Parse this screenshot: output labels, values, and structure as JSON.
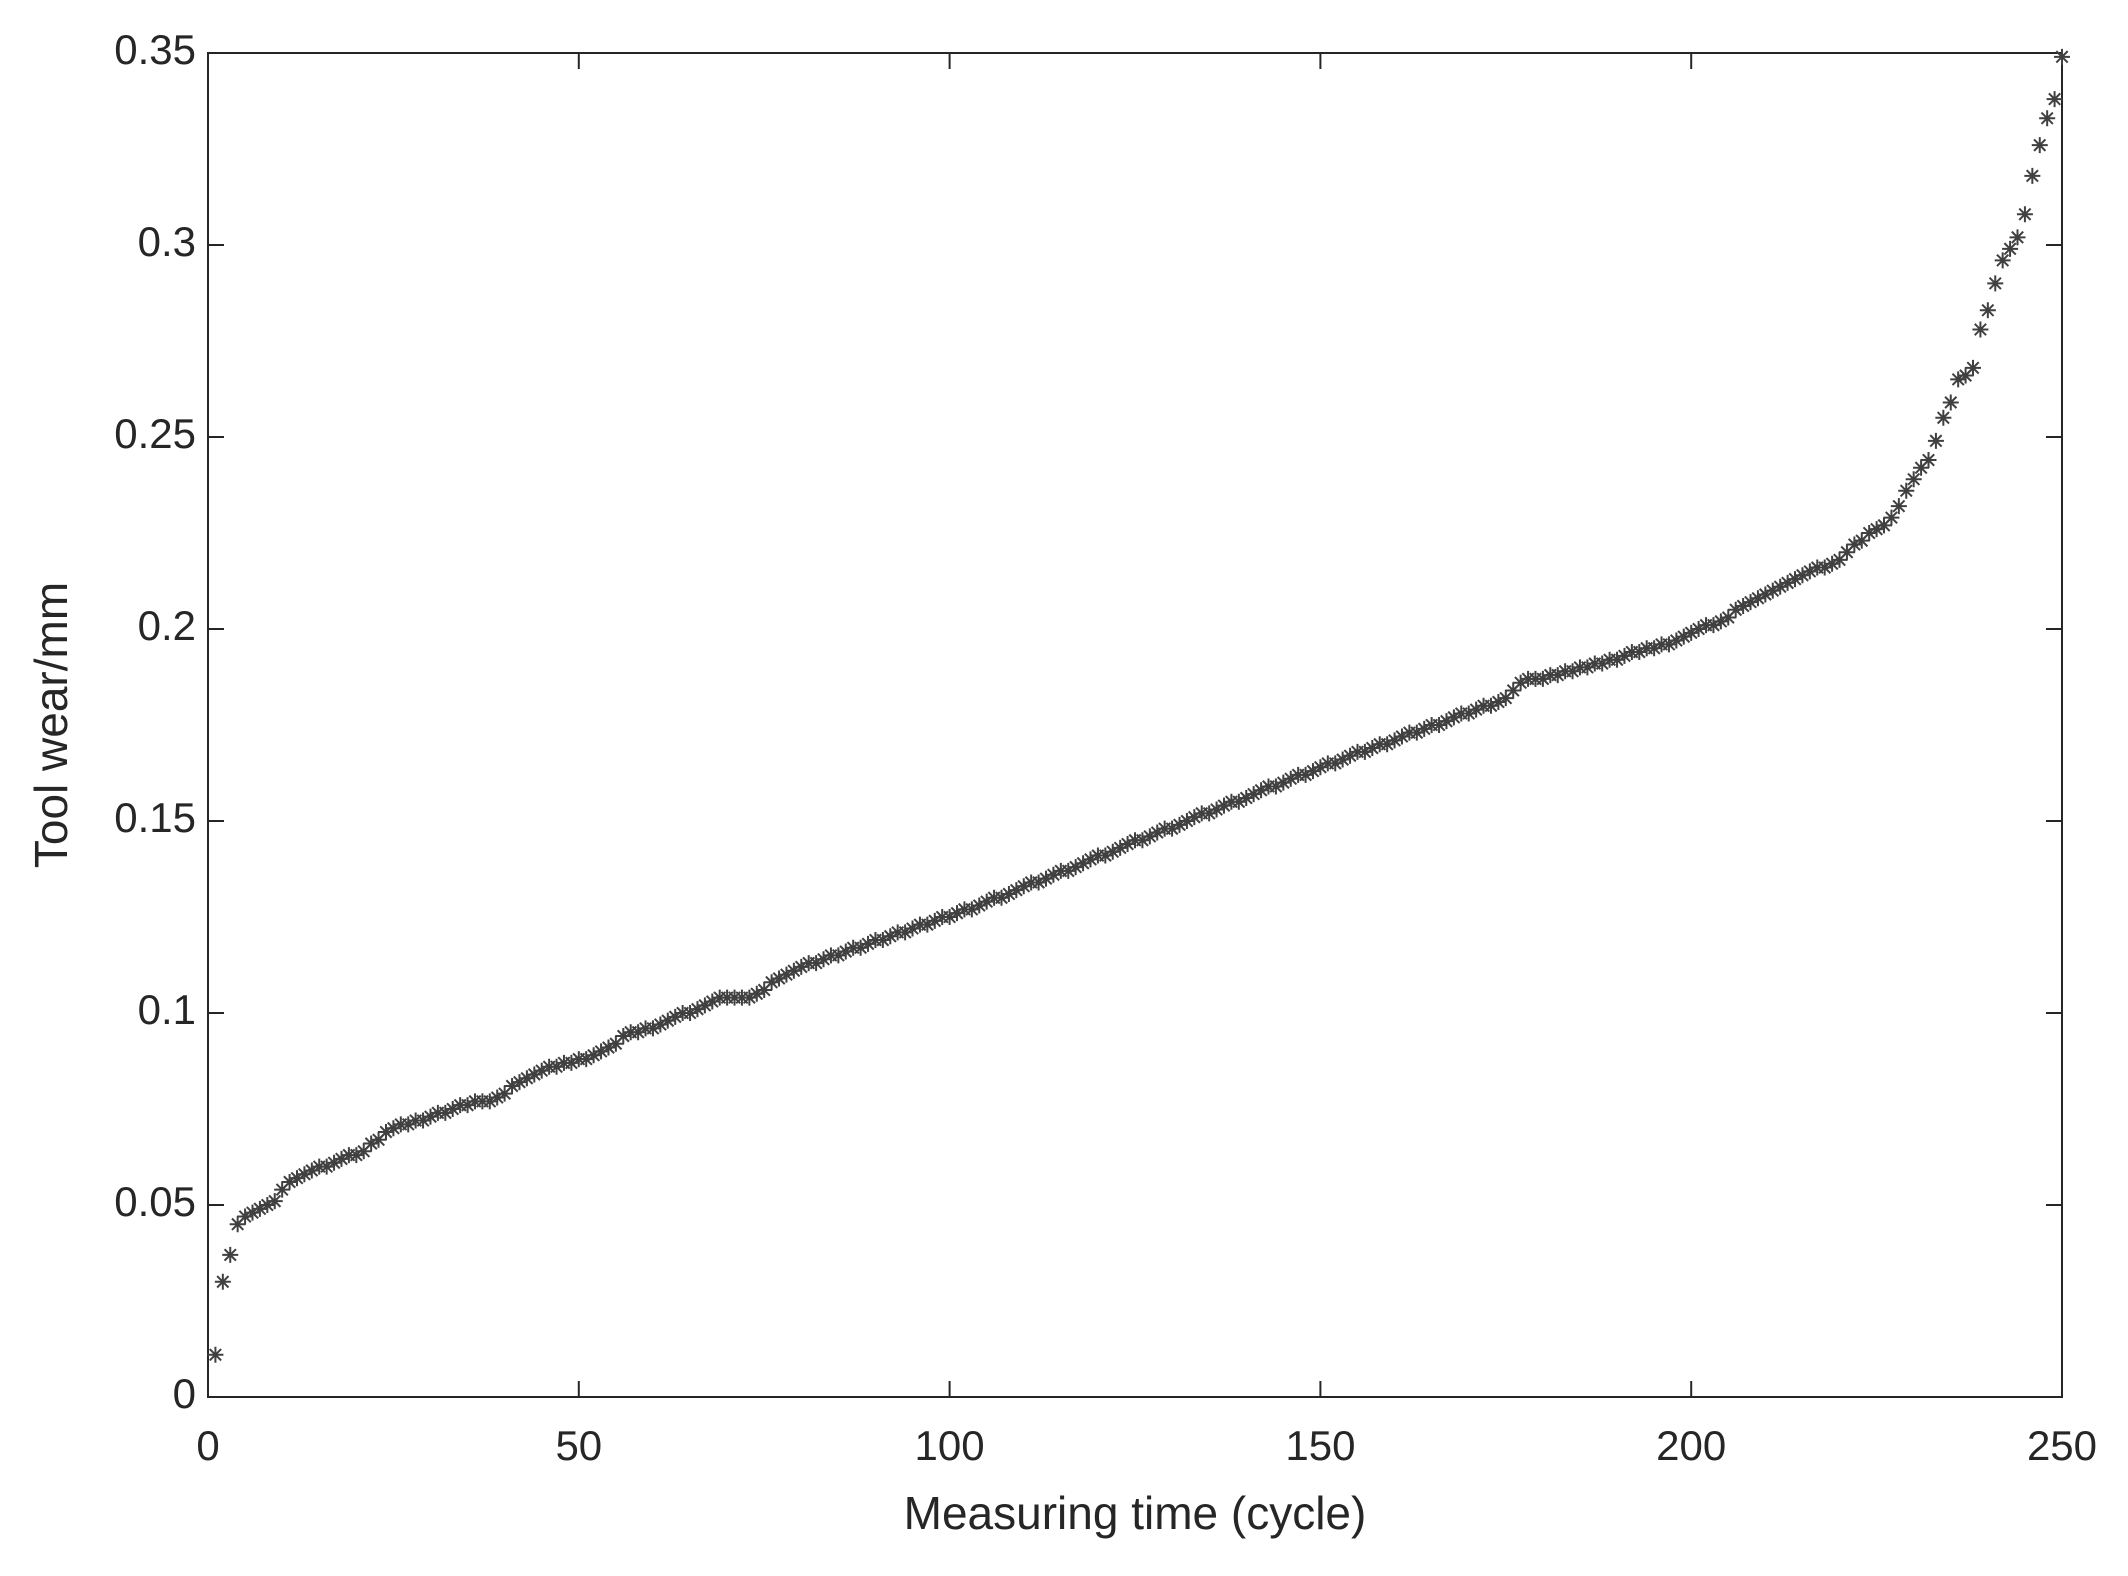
{
  "chart_data": {
    "type": "scatter",
    "xlabel": "Measuring time (cycle)",
    "ylabel": "Tool wear/mm",
    "color": "#404040",
    "marker": "asterisk",
    "xlim": [
      0,
      250
    ],
    "xticks": [
      0,
      50,
      100,
      150,
      200,
      250
    ],
    "ylim": [
      0,
      0.35
    ],
    "yticks": [
      0,
      0.05,
      0.1,
      0.15,
      0.2,
      0.25,
      0.3,
      0.35
    ],
    "x": [
      1,
      2,
      3,
      4,
      5,
      6,
      7,
      8,
      9,
      10,
      11,
      12,
      13,
      14,
      15,
      16,
      17,
      18,
      19,
      20,
      21,
      22,
      23,
      24,
      25,
      26,
      27,
      28,
      29,
      30,
      31,
      32,
      33,
      34,
      35,
      36,
      37,
      38,
      39,
      40,
      41,
      42,
      43,
      44,
      45,
      46,
      47,
      48,
      49,
      50,
      51,
      52,
      53,
      54,
      55,
      56,
      57,
      58,
      59,
      60,
      61,
      62,
      63,
      64,
      65,
      66,
      67,
      68,
      69,
      70,
      71,
      72,
      73,
      74,
      75,
      76,
      77,
      78,
      79,
      80,
      81,
      82,
      83,
      84,
      85,
      86,
      87,
      88,
      89,
      90,
      91,
      92,
      93,
      94,
      95,
      96,
      97,
      98,
      99,
      100,
      101,
      102,
      103,
      104,
      105,
      106,
      107,
      108,
      109,
      110,
      111,
      112,
      113,
      114,
      115,
      116,
      117,
      118,
      119,
      120,
      121,
      122,
      123,
      124,
      125,
      126,
      127,
      128,
      129,
      130,
      131,
      132,
      133,
      134,
      135,
      136,
      137,
      138,
      139,
      140,
      141,
      142,
      143,
      144,
      145,
      146,
      147,
      148,
      149,
      150,
      151,
      152,
      153,
      154,
      155,
      156,
      157,
      158,
      159,
      160,
      161,
      162,
      163,
      164,
      165,
      166,
      167,
      168,
      169,
      170,
      171,
      172,
      173,
      174,
      175,
      176,
      177,
      178,
      179,
      180,
      181,
      182,
      183,
      184,
      185,
      186,
      187,
      188,
      189,
      190,
      191,
      192,
      193,
      194,
      195,
      196,
      197,
      198,
      199,
      200,
      201,
      202,
      203,
      204,
      205,
      206,
      207,
      208,
      209,
      210,
      211,
      212,
      213,
      214,
      215,
      216,
      217,
      218,
      219,
      220,
      221,
      222,
      223,
      224,
      225,
      226,
      227,
      228,
      229,
      230,
      231,
      232,
      233,
      234,
      235,
      236,
      237,
      238,
      239,
      240,
      241,
      242,
      243,
      244,
      245,
      246,
      247,
      248,
      249,
      250
    ],
    "values": [
      0.011,
      0.03,
      0.037,
      0.045,
      0.047,
      0.048,
      0.049,
      0.05,
      0.051,
      0.054,
      0.056,
      0.057,
      0.058,
      0.059,
      0.06,
      0.06,
      0.061,
      0.062,
      0.063,
      0.063,
      0.064,
      0.066,
      0.067,
      0.069,
      0.07,
      0.071,
      0.071,
      0.072,
      0.072,
      0.073,
      0.074,
      0.074,
      0.075,
      0.076,
      0.076,
      0.077,
      0.077,
      0.077,
      0.078,
      0.079,
      0.081,
      0.082,
      0.083,
      0.084,
      0.085,
      0.086,
      0.086,
      0.087,
      0.087,
      0.088,
      0.088,
      0.089,
      0.09,
      0.091,
      0.092,
      0.094,
      0.095,
      0.095,
      0.096,
      0.096,
      0.097,
      0.098,
      0.099,
      0.1,
      0.1,
      0.101,
      0.102,
      0.103,
      0.104,
      0.104,
      0.104,
      0.104,
      0.104,
      0.105,
      0.106,
      0.108,
      0.109,
      0.11,
      0.111,
      0.112,
      0.113,
      0.113,
      0.114,
      0.115,
      0.115,
      0.116,
      0.117,
      0.117,
      0.118,
      0.119,
      0.119,
      0.12,
      0.121,
      0.121,
      0.122,
      0.123,
      0.123,
      0.124,
      0.125,
      0.125,
      0.126,
      0.127,
      0.127,
      0.128,
      0.129,
      0.13,
      0.13,
      0.131,
      0.132,
      0.133,
      0.134,
      0.134,
      0.135,
      0.136,
      0.137,
      0.137,
      0.138,
      0.139,
      0.14,
      0.141,
      0.141,
      0.142,
      0.143,
      0.144,
      0.145,
      0.145,
      0.146,
      0.147,
      0.148,
      0.148,
      0.149,
      0.15,
      0.151,
      0.152,
      0.152,
      0.153,
      0.154,
      0.155,
      0.155,
      0.156,
      0.157,
      0.158,
      0.159,
      0.159,
      0.16,
      0.161,
      0.162,
      0.162,
      0.163,
      0.164,
      0.165,
      0.165,
      0.166,
      0.167,
      0.168,
      0.168,
      0.169,
      0.17,
      0.17,
      0.171,
      0.172,
      0.173,
      0.173,
      0.174,
      0.175,
      0.175,
      0.176,
      0.177,
      0.178,
      0.178,
      0.179,
      0.18,
      0.18,
      0.181,
      0.182,
      0.184,
      0.186,
      0.187,
      0.187,
      0.187,
      0.188,
      0.188,
      0.189,
      0.189,
      0.19,
      0.19,
      0.191,
      0.191,
      0.192,
      0.192,
      0.193,
      0.194,
      0.194,
      0.195,
      0.195,
      0.196,
      0.196,
      0.197,
      0.198,
      0.199,
      0.2,
      0.201,
      0.201,
      0.202,
      0.203,
      0.205,
      0.206,
      0.207,
      0.208,
      0.209,
      0.21,
      0.211,
      0.212,
      0.213,
      0.214,
      0.215,
      0.216,
      0.216,
      0.217,
      0.218,
      0.22,
      0.222,
      0.223,
      0.225,
      0.226,
      0.227,
      0.229,
      0.232,
      0.236,
      0.239,
      0.242,
      0.244,
      0.249,
      0.255,
      0.259,
      0.265,
      0.266,
      0.268,
      0.278,
      0.283,
      0.29,
      0.296,
      0.299,
      0.302,
      0.308,
      0.318,
      0.326,
      0.333,
      0.338,
      0.349
    ]
  }
}
